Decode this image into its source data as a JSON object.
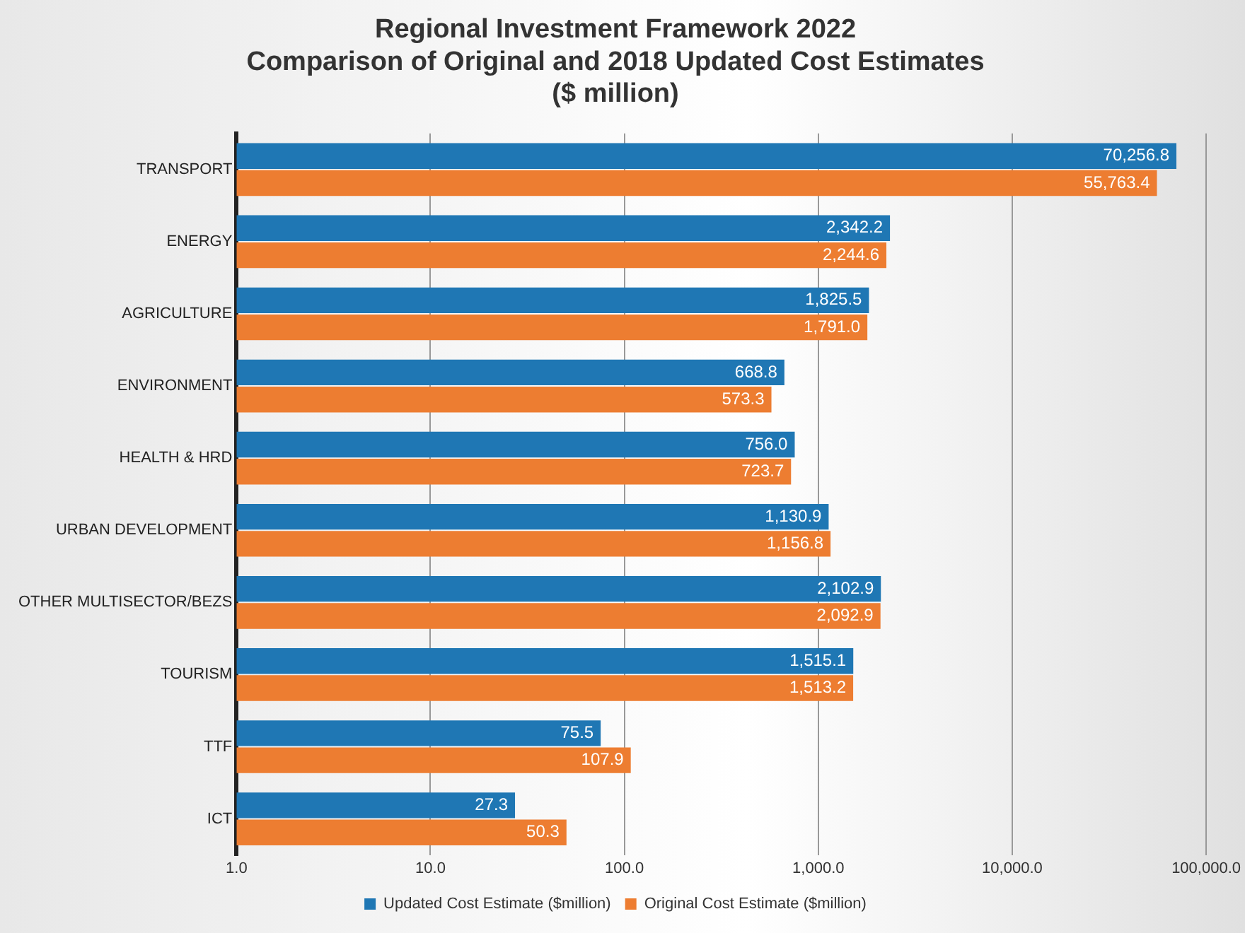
{
  "chart_data": {
    "type": "bar",
    "orientation": "horizontal",
    "title": "Regional Investment Framework 2022\nComparison of Original and 2018 Updated Cost Estimates\n($ million)",
    "categories": [
      "TRANSPORT",
      "ENERGY",
      "AGRICULTURE",
      "ENVIRONMENT",
      "HEALTH & HRD",
      "URBAN DEVELOPMENT",
      "OTHER MULTISECTOR/BEZS",
      "TOURISM",
      "TTF",
      "ICT"
    ],
    "series": [
      {
        "name": "Updated Cost Estimate ($million)",
        "color": "#1f77b4",
        "values": [
          70256.8,
          2342.2,
          1825.5,
          668.8,
          756.0,
          1130.9,
          2102.9,
          1515.1,
          75.5,
          27.3
        ],
        "value_labels": [
          "70,256.8",
          "2,342.2",
          "1,825.5",
          "668.8",
          "756.0",
          "1,130.9",
          "2,102.9",
          "1,515.1",
          "75.5",
          "27.3"
        ]
      },
      {
        "name": "Original Cost Estimate ($million)",
        "color": "#ed7d31",
        "values": [
          55763.4,
          2244.6,
          1791.0,
          573.3,
          723.7,
          1156.8,
          2092.9,
          1513.2,
          107.9,
          50.3
        ],
        "value_labels": [
          "55,763.4",
          "2,244.6",
          "1,791.0",
          "573.3",
          "723.7",
          "1,156.8",
          "2,092.9",
          "1,513.2",
          "107.9",
          "50.3"
        ]
      }
    ],
    "log": "x",
    "xlim": [
      1,
      100000
    ],
    "xticks": [
      {
        "value": 1,
        "label": "1.0"
      },
      {
        "value": 10,
        "label": "10.0"
      },
      {
        "value": 100,
        "label": "100.0"
      },
      {
        "value": 1000,
        "label": "1,000.0"
      },
      {
        "value": 10000,
        "label": "10,000.0"
      },
      {
        "value": 100000,
        "label": "100,000.0"
      }
    ],
    "grid": "x",
    "legend": "bottom"
  }
}
